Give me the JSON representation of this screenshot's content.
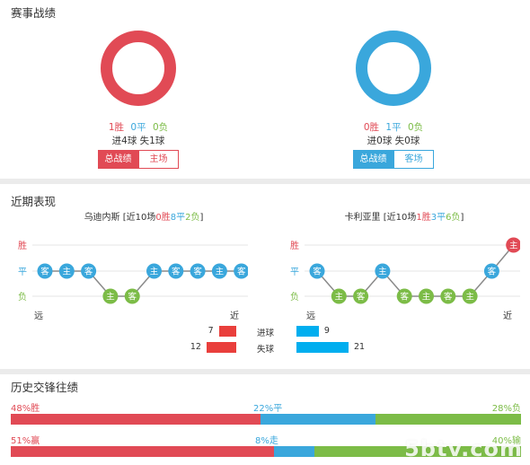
{
  "record": {
    "title": "赛事战绩",
    "home": {
      "wins": "1胜",
      "draws": "0平",
      "losses": "0负",
      "goals_line": "进4球  失1球",
      "tab_all": "总战绩",
      "tab_side": "主场",
      "ring_color": "#e14a55"
    },
    "away": {
      "wins": "0胜",
      "draws": "1平",
      "losses": "0负",
      "goals_line": "进0球  失0球",
      "tab_all": "总战绩",
      "tab_side": "客场",
      "ring_color": "#3aa7dc"
    }
  },
  "recent": {
    "title": "近期表现",
    "home": {
      "team": "乌迪内斯",
      "prefix": "[近10场",
      "wins": "0胜",
      "draws": "8平",
      "losses": "2负",
      "suffix": "]",
      "results": [
        "D",
        "D",
        "D",
        "L",
        "L",
        "D",
        "D",
        "D",
        "D",
        "D"
      ],
      "venues": [
        "客",
        "主",
        "客",
        "主",
        "客",
        "主",
        "客",
        "客",
        "主",
        "客"
      ]
    },
    "away": {
      "team": "卡利亚里",
      "prefix": "[近10场",
      "wins": "1胜",
      "draws": "3平",
      "losses": "6负",
      "suffix": "]",
      "results": [
        "D",
        "L",
        "L",
        "D",
        "L",
        "L",
        "L",
        "L",
        "D",
        "W"
      ],
      "venues": [
        "客",
        "主",
        "客",
        "主",
        "客",
        "主",
        "客",
        "主",
        "客",
        "主"
      ]
    },
    "y_labels": {
      "win": "胜",
      "draw": "平",
      "loss": "负"
    },
    "x_labels": {
      "far": "远",
      "near": "近"
    },
    "goals_for_label": "进球",
    "goals_against_label": "失球",
    "home_goals_for": 7,
    "home_goals_against": 12,
    "away_goals_for": 9,
    "away_goals_against": 21
  },
  "history": {
    "title": "历史交锋往绩",
    "row1": {
      "win_label": "48%胜",
      "draw_label": "22%平",
      "loss_label": "28%负",
      "win": 48,
      "draw": 22,
      "loss": 28
    },
    "row2": {
      "win_label": "51%赢",
      "draw_label": "8%走",
      "loss_label": "40%输",
      "win": 51,
      "draw": 8,
      "loss": 40
    }
  },
  "watermark": "5btv.com",
  "colors": {
    "win": "#e14a55",
    "draw": "#3aa7dc",
    "loss": "#7cbc47",
    "gray": "#c8c8c8",
    "stat_red": "#e93f3c",
    "stat_blue": "#00aeef"
  }
}
